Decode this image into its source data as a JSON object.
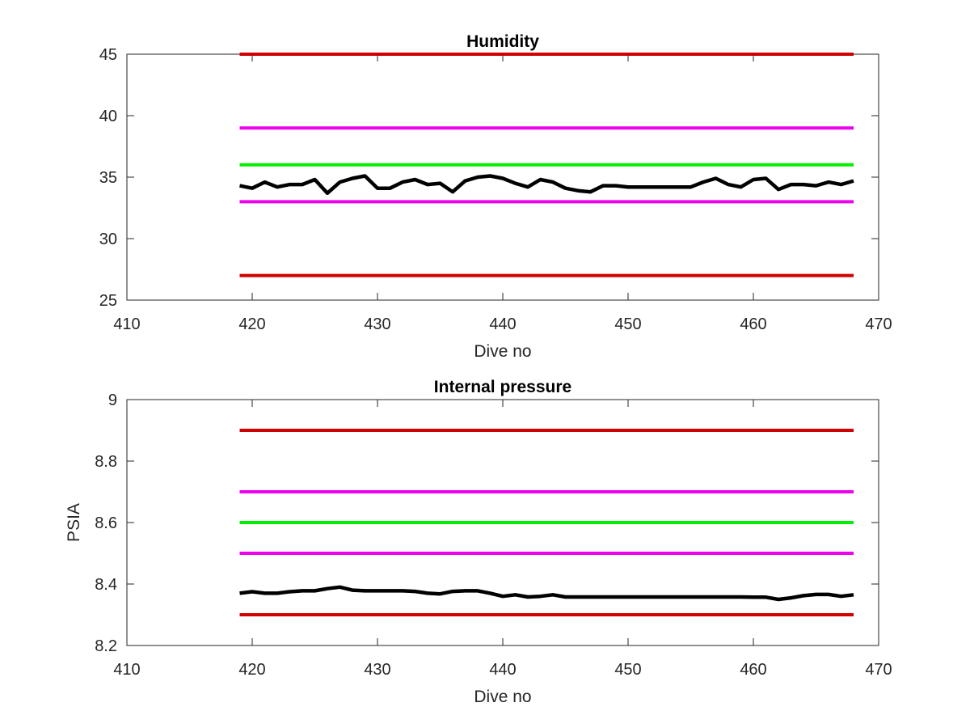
{
  "chart_data": [
    {
      "type": "line",
      "title": "Humidity",
      "xlabel": "Dive no",
      "ylabel": "",
      "xlim": [
        410,
        470
      ],
      "ylim": [
        25,
        45
      ],
      "xticks": [
        410,
        420,
        430,
        440,
        450,
        460,
        470
      ],
      "yticks": [
        25,
        30,
        35,
        40,
        45
      ],
      "grid": false,
      "series": [
        {
          "color": "#d00000",
          "x": [
            419,
            468
          ],
          "values": [
            45,
            45
          ]
        },
        {
          "color": "#ee00ee",
          "x": [
            419,
            468
          ],
          "values": [
            39,
            39
          ]
        },
        {
          "color": "#00ee00",
          "x": [
            419,
            468
          ],
          "values": [
            36,
            36
          ]
        },
        {
          "color": "#ee00ee",
          "x": [
            419,
            468
          ],
          "values": [
            33,
            33
          ]
        },
        {
          "color": "#d00000",
          "x": [
            419,
            468
          ],
          "values": [
            27,
            27
          ]
        },
        {
          "color": "#000000",
          "x": [
            419,
            420,
            421,
            422,
            423,
            424,
            425,
            426,
            427,
            428,
            429,
            430,
            431,
            432,
            433,
            434,
            435,
            436,
            437,
            438,
            439,
            440,
            441,
            442,
            443,
            444,
            445,
            446,
            447,
            448,
            449,
            450,
            451,
            452,
            453,
            454,
            455,
            456,
            457,
            458,
            459,
            460,
            461,
            462,
            463,
            464,
            465,
            466,
            467,
            468
          ],
          "values": [
            34.3,
            34.1,
            34.6,
            34.2,
            34.4,
            34.4,
            34.8,
            33.7,
            34.6,
            34.9,
            35.1,
            34.1,
            34.1,
            34.6,
            34.8,
            34.4,
            34.5,
            33.8,
            34.7,
            35.0,
            35.1,
            34.9,
            34.5,
            34.2,
            34.8,
            34.6,
            34.1,
            33.9,
            33.8,
            34.3,
            34.3,
            34.2,
            34.2,
            34.2,
            34.2,
            34.2,
            34.2,
            34.6,
            34.9,
            34.4,
            34.2,
            34.8,
            34.9,
            34.0,
            34.4,
            34.4,
            34.3,
            34.6,
            34.4,
            34.7
          ]
        }
      ]
    },
    {
      "type": "line",
      "title": "Internal pressure",
      "xlabel": "Dive no",
      "ylabel": "PSIA",
      "xlim": [
        410,
        470
      ],
      "ylim": [
        8.2,
        9.0
      ],
      "xticks": [
        410,
        420,
        430,
        440,
        450,
        460,
        470
      ],
      "yticks": [
        8.2,
        8.4,
        8.6,
        8.8,
        9.0
      ],
      "ytick_labels": [
        "8.2",
        "8.4",
        "8.6",
        "8.8",
        "9"
      ],
      "grid": false,
      "series": [
        {
          "color": "#d00000",
          "x": [
            419,
            468
          ],
          "values": [
            8.9,
            8.9
          ]
        },
        {
          "color": "#ee00ee",
          "x": [
            419,
            468
          ],
          "values": [
            8.7,
            8.7
          ]
        },
        {
          "color": "#00ee00",
          "x": [
            419,
            468
          ],
          "values": [
            8.6,
            8.6
          ]
        },
        {
          "color": "#ee00ee",
          "x": [
            419,
            468
          ],
          "values": [
            8.5,
            8.5
          ]
        },
        {
          "color": "#d00000",
          "x": [
            419,
            468
          ],
          "values": [
            8.3,
            8.3
          ]
        },
        {
          "color": "#000000",
          "x": [
            419,
            420,
            421,
            422,
            423,
            424,
            425,
            426,
            427,
            428,
            429,
            430,
            431,
            432,
            433,
            434,
            435,
            436,
            437,
            438,
            439,
            440,
            441,
            442,
            443,
            444,
            445,
            446,
            447,
            448,
            449,
            450,
            451,
            452,
            453,
            454,
            455,
            456,
            457,
            458,
            459,
            460,
            461,
            462,
            463,
            464,
            465,
            466,
            467,
            468
          ],
          "values": [
            8.37,
            8.375,
            8.37,
            8.37,
            8.375,
            8.378,
            8.378,
            8.385,
            8.39,
            8.38,
            8.378,
            8.378,
            8.378,
            8.378,
            8.376,
            8.37,
            8.368,
            8.376,
            8.378,
            8.378,
            8.37,
            8.36,
            8.365,
            8.358,
            8.36,
            8.365,
            8.358,
            8.358,
            8.358,
            8.358,
            8.358,
            8.358,
            8.358,
            8.358,
            8.358,
            8.358,
            8.358,
            8.358,
            8.358,
            8.358,
            8.358,
            8.357,
            8.357,
            8.35,
            8.355,
            8.362,
            8.366,
            8.366,
            8.36,
            8.365
          ]
        }
      ]
    }
  ]
}
